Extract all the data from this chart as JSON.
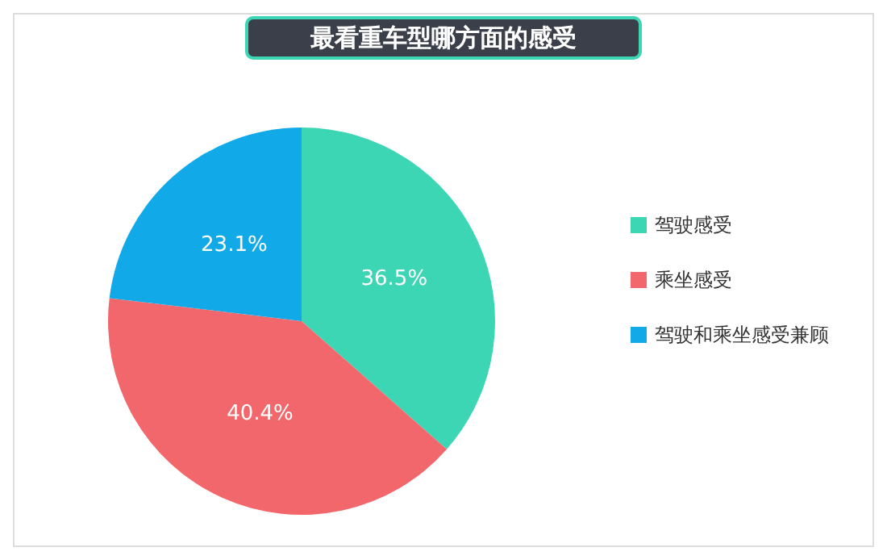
{
  "chart_data": {
    "type": "pie",
    "title": "最看重车型哪方面的感受",
    "categories": [
      "驾驶感受",
      "乘坐感受",
      "驾驶和乘坐感受兼顾"
    ],
    "values": [
      36.5,
      40.4,
      23.1
    ],
    "colors": [
      "#3dd6b5",
      "#f2676b",
      "#12a9e9"
    ],
    "value_labels": [
      "36.5%",
      "40.4%",
      "23.1%"
    ],
    "legend": "right"
  }
}
